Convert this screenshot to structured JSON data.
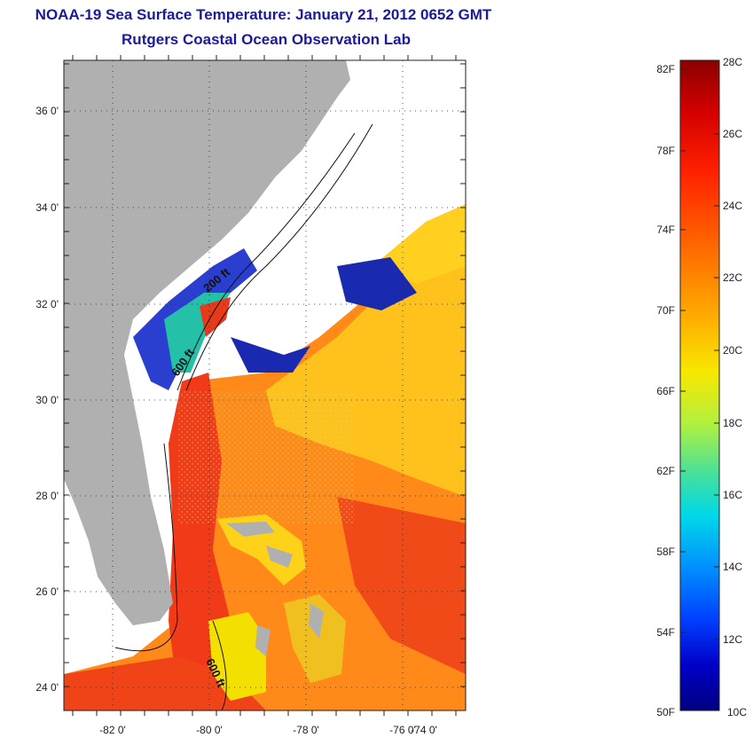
{
  "header": {
    "title": "NOAA-19 Sea Surface Temperature:  January 21, 2012 0652 GMT",
    "subtitle": "Rutgers Coastal Ocean Observation Lab"
  },
  "map": {
    "lon_ticks": [
      "-82 0'",
      "-80 0'",
      "-78 0'",
      "-76 0'",
      "-74 0'"
    ],
    "lat_ticks": [
      "36 0'",
      "34 0'",
      "32 0'",
      "30 0'",
      "28 0'",
      "26 0'",
      "24 0'"
    ],
    "contour_labels": [
      "200 ft",
      "600 ft",
      "600 ft"
    ],
    "colors": {
      "land": "#b0b0b0",
      "cloud": "#ffffff",
      "warm": "#ff7a10",
      "hot": "#f03018",
      "mild": "#ffc81a",
      "cool": "#2838d8"
    }
  },
  "colorbar": {
    "fahrenheit": [
      "82F",
      "78F",
      "74F",
      "70F",
      "66F",
      "62F",
      "58F",
      "54F",
      "50F"
    ],
    "celsius": [
      "28C",
      "26C",
      "24C",
      "22C",
      "20C",
      "18C",
      "16C",
      "14C",
      "12C",
      "10C"
    ],
    "stops": [
      "#8b0000",
      "#d40000",
      "#ff2000",
      "#ff7000",
      "#ffb000",
      "#f7e800",
      "#b0f040",
      "#40e0a0",
      "#00d8e8",
      "#0090ff",
      "#0040ff",
      "#0000c8",
      "#000080"
    ]
  }
}
